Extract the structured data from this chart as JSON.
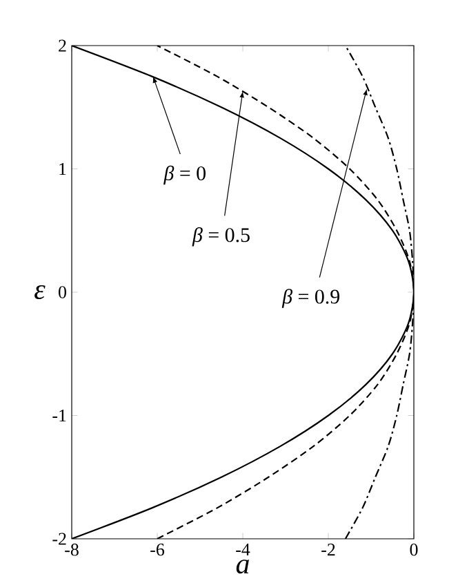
{
  "chart_data": {
    "type": "line",
    "xlabel": "a",
    "ylabel": "ε",
    "xlim": [
      -8,
      0
    ],
    "ylim": [
      -2,
      2
    ],
    "xticks": [
      -8,
      -6,
      -4,
      -2,
      0
    ],
    "yticks": [
      -2,
      -1,
      0,
      1,
      2
    ],
    "marker": "none",
    "series": [
      {
        "color": "#000000",
        "line_style": "solid",
        "x": [
          -8,
          -6.125,
          -4.5,
          -3.125,
          -2,
          -1.125,
          -0.5,
          -0.125,
          0,
          -0.125,
          -0.5,
          -1.125,
          -2,
          -3.125,
          -4.5,
          -6.125,
          -8
        ],
        "values": [
          -2,
          -1.75,
          -1.5,
          -1.25,
          -1,
          -0.75,
          -0.5,
          -0.25,
          0,
          0.25,
          0.5,
          0.75,
          1,
          1.25,
          1.5,
          1.75,
          2
        ]
      },
      {
        "color": "#000000",
        "line_style": "dashed",
        "x": [
          -6,
          -4.6,
          -3.4,
          -2.35,
          -1.5,
          -0.85,
          -0.4,
          -0.1,
          0,
          -0.1,
          -0.4,
          -0.85,
          -1.5,
          -2.35,
          -3.4,
          -4.6,
          -6
        ],
        "values": [
          -2,
          -1.75,
          -1.5,
          -1.25,
          -1,
          -0.75,
          -0.5,
          -0.25,
          0,
          0.25,
          0.5,
          0.75,
          1,
          1.25,
          1.5,
          1.75,
          2
        ]
      },
      {
        "color": "#000000",
        "line_style": "dashdot",
        "x": [
          -1.6,
          -1.2,
          -0.9,
          -0.6,
          -0.4,
          -0.25,
          -0.1,
          -0.03,
          0,
          -0.03,
          -0.1,
          -0.25,
          -0.4,
          -0.6,
          -0.9,
          -1.2,
          -1.6
        ],
        "values": [
          -2,
          -1.75,
          -1.5,
          -1.25,
          -1,
          -0.75,
          -0.5,
          -0.25,
          0,
          0.25,
          0.5,
          0.75,
          1,
          1.25,
          1.5,
          1.75,
          2
        ]
      }
    ],
    "annotations": [
      {
        "text": "*β* = 0",
        "x": -6.1,
        "y": 1.75
      },
      {
        "text": "*β* = 0.5",
        "x": -4,
        "y": 1.63
      },
      {
        "text": "*β* = 0.9",
        "x": -1.1,
        "y": 1.65
      }
    ]
  }
}
